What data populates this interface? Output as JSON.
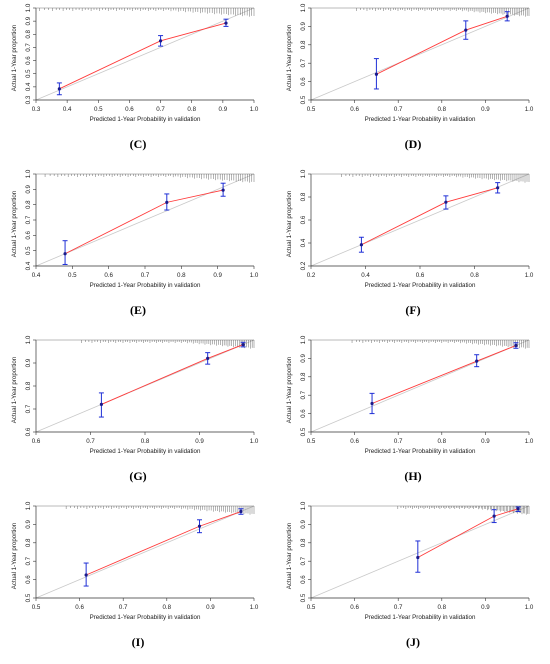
{
  "chart_data": [
    {
      "type": "scatter",
      "panel_label": "(C)",
      "xlabel": "Predicted 1-Year Probability in validation",
      "ylabel": "Actual 1-Year proportion",
      "xlim": [
        0.3,
        1.0
      ],
      "ylim": [
        0.3,
        1.0
      ],
      "xticks": [
        "0.3",
        "0.4",
        "0.5",
        "0.6",
        "0.7",
        "0.8",
        "0.9",
        "1.0"
      ],
      "yticks": [
        "0.3",
        "0.4",
        "0.5",
        "0.6",
        "0.7",
        "0.8",
        "0.9",
        "1.0"
      ],
      "points": [
        {
          "x": 0.375,
          "y": 0.385,
          "lo": 0.34,
          "hi": 0.43
        },
        {
          "x": 0.7,
          "y": 0.75,
          "lo": 0.71,
          "hi": 0.79
        },
        {
          "x": 0.91,
          "y": 0.885,
          "lo": 0.86,
          "hi": 0.915
        }
      ]
    },
    {
      "type": "scatter",
      "panel_label": "(D)",
      "xlabel": "Predicted 1-Year Probability in validation",
      "ylabel": "Actual 1-Year proportion",
      "xlim": [
        0.5,
        1.0
      ],
      "ylim": [
        0.5,
        1.0
      ],
      "xticks": [
        "0.5",
        "0.6",
        "0.7",
        "0.8",
        "0.9",
        "1.0"
      ],
      "yticks": [
        "0.5",
        "0.6",
        "0.7",
        "0.8",
        "0.9",
        "1.0"
      ],
      "points": [
        {
          "x": 0.65,
          "y": 0.64,
          "lo": 0.56,
          "hi": 0.725
        },
        {
          "x": 0.855,
          "y": 0.88,
          "lo": 0.83,
          "hi": 0.93
        },
        {
          "x": 0.95,
          "y": 0.955,
          "lo": 0.93,
          "hi": 0.98
        }
      ]
    },
    {
      "type": "scatter",
      "panel_label": "(E)",
      "xlabel": "Predicted 1-Year Probability in validation",
      "ylabel": "Actual 1-Year proportion",
      "xlim": [
        0.4,
        1.0
      ],
      "ylim": [
        0.4,
        1.0
      ],
      "xticks": [
        "0.4",
        "0.5",
        "0.6",
        "0.7",
        "0.8",
        "0.9",
        "1.0"
      ],
      "yticks": [
        "0.4",
        "0.5",
        "0.6",
        "0.7",
        "0.8",
        "0.9",
        "1.0"
      ],
      "points": [
        {
          "x": 0.48,
          "y": 0.48,
          "lo": 0.41,
          "hi": 0.565
        },
        {
          "x": 0.76,
          "y": 0.815,
          "lo": 0.765,
          "hi": 0.87
        },
        {
          "x": 0.915,
          "y": 0.895,
          "lo": 0.855,
          "hi": 0.94
        }
      ]
    },
    {
      "type": "scatter",
      "panel_label": "(F)",
      "xlabel": "Predicted 1-Year Probability in validation",
      "ylabel": "Actual 1-Year proportion",
      "xlim": [
        0.2,
        1.0
      ],
      "ylim": [
        0.2,
        1.0
      ],
      "xticks": [
        "0.2",
        "0.4",
        "0.6",
        "0.8",
        "1.0"
      ],
      "yticks": [
        "0.2",
        "0.4",
        "0.6",
        "0.8",
        "1.0"
      ],
      "points": [
        {
          "x": 0.385,
          "y": 0.385,
          "lo": 0.32,
          "hi": 0.45
        },
        {
          "x": 0.695,
          "y": 0.755,
          "lo": 0.695,
          "hi": 0.81
        },
        {
          "x": 0.885,
          "y": 0.88,
          "lo": 0.835,
          "hi": 0.925
        }
      ]
    },
    {
      "type": "scatter",
      "panel_label": "(G)",
      "xlabel": "Predicted 1-Year Probability in validation",
      "ylabel": "Actual 1-Year proportion",
      "xlim": [
        0.6,
        1.0
      ],
      "ylim": [
        0.6,
        1.0
      ],
      "xticks": [
        "0.6",
        "0.7",
        "0.8",
        "0.9",
        "1.0"
      ],
      "yticks": [
        "0.6",
        "0.7",
        "0.8",
        "0.9",
        "1.0"
      ],
      "points": [
        {
          "x": 0.72,
          "y": 0.72,
          "lo": 0.665,
          "hi": 0.77
        },
        {
          "x": 0.915,
          "y": 0.92,
          "lo": 0.895,
          "hi": 0.945
        },
        {
          "x": 0.98,
          "y": 0.98,
          "lo": 0.97,
          "hi": 0.99
        }
      ]
    },
    {
      "type": "scatter",
      "panel_label": "(H)",
      "xlabel": "Predicted 1-Year Probability in validation",
      "ylabel": "Actual 1-Year proportion",
      "xlim": [
        0.5,
        1.0
      ],
      "ylim": [
        0.5,
        1.0
      ],
      "xticks": [
        "0.5",
        "0.6",
        "0.7",
        "0.8",
        "0.9",
        "1.0"
      ],
      "yticks": [
        "0.5",
        "0.6",
        "0.7",
        "0.8",
        "0.9",
        "1.0"
      ],
      "points": [
        {
          "x": 0.64,
          "y": 0.655,
          "lo": 0.6,
          "hi": 0.71
        },
        {
          "x": 0.88,
          "y": 0.885,
          "lo": 0.855,
          "hi": 0.92
        },
        {
          "x": 0.97,
          "y": 0.97,
          "lo": 0.955,
          "hi": 0.985
        }
      ]
    },
    {
      "type": "scatter",
      "panel_label": "(I)",
      "xlabel": "Predicted 1-Year Probability in validation",
      "ylabel": "Actual 1-Year proportion",
      "xlim": [
        0.5,
        1.0
      ],
      "ylim": [
        0.5,
        1.0
      ],
      "xticks": [
        "0.5",
        "0.6",
        "0.7",
        "0.8",
        "0.9",
        "1.0"
      ],
      "yticks": [
        "0.5",
        "0.6",
        "0.7",
        "0.8",
        "0.9",
        "1.0"
      ],
      "points": [
        {
          "x": 0.615,
          "y": 0.625,
          "lo": 0.565,
          "hi": 0.69
        },
        {
          "x": 0.875,
          "y": 0.89,
          "lo": 0.855,
          "hi": 0.925
        },
        {
          "x": 0.97,
          "y": 0.97,
          "lo": 0.955,
          "hi": 0.985
        }
      ]
    },
    {
      "type": "scatter",
      "panel_label": "(J)",
      "xlabel": "Predicted 1-Year Probability in validation",
      "ylabel": "Actual 1-Year proportion",
      "xlim": [
        0.5,
        1.0
      ],
      "ylim": [
        0.5,
        1.0
      ],
      "xticks": [
        "0.5",
        "0.6",
        "0.7",
        "0.8",
        "0.9",
        "1.0"
      ],
      "yticks": [
        "0.5",
        "0.6",
        "0.7",
        "0.8",
        "0.9",
        "1.0"
      ],
      "points": [
        {
          "x": 0.745,
          "y": 0.72,
          "lo": 0.64,
          "hi": 0.81
        },
        {
          "x": 0.92,
          "y": 0.945,
          "lo": 0.91,
          "hi": 0.98
        },
        {
          "x": 0.975,
          "y": 0.985,
          "lo": 0.97,
          "hi": 0.995
        }
      ]
    }
  ],
  "colors": {
    "fit_line": "#ff3b3b",
    "error_bar": "#1f2fd6",
    "point": "#1a1a8a",
    "ideal_line": "#c9c9c9",
    "axis": "#333333"
  }
}
